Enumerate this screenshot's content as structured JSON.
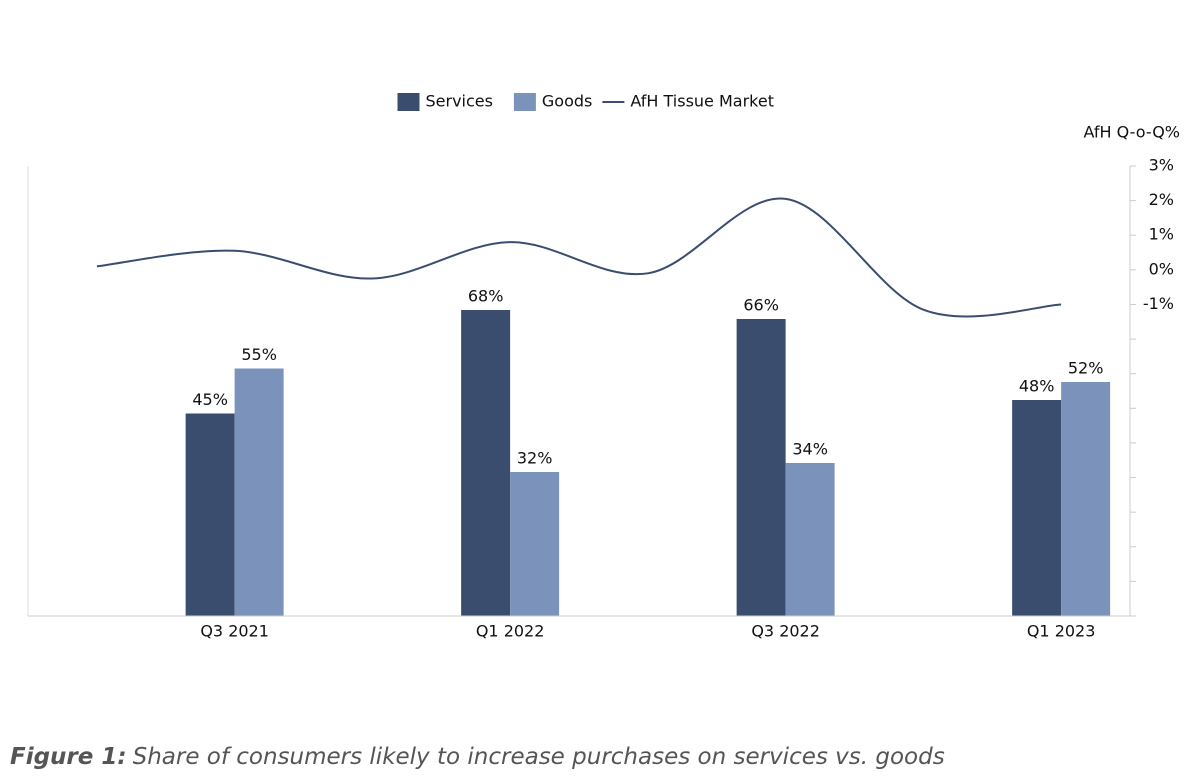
{
  "chart_data": {
    "type": "bar_line",
    "categories": [
      null,
      "Q3 2021",
      null,
      "Q1 2022",
      null,
      "Q3 2022",
      null,
      "Q1 2023"
    ],
    "series": [
      {
        "name": "Services",
        "color": "#3b4d6e",
        "type": "bar",
        "values": [
          null,
          45,
          null,
          68,
          null,
          66,
          null,
          48
        ],
        "value_labels": [
          null,
          "45%",
          null,
          "68%",
          null,
          "66%",
          null,
          "48%"
        ]
      },
      {
        "name": "Goods",
        "color": "#7b93ba",
        "type": "bar",
        "values": [
          null,
          55,
          null,
          32,
          null,
          34,
          null,
          52
        ],
        "value_labels": [
          null,
          "55%",
          null,
          "32%",
          null,
          "34%",
          null,
          "52%"
        ]
      },
      {
        "name": "AfH Tissue Market",
        "color": "#3b4d6e",
        "type": "line",
        "axis": "y2",
        "values": [
          0.1,
          0.55,
          -0.25,
          0.8,
          -0.1,
          2.05,
          -1.15,
          -1.0
        ]
      }
    ],
    "ylim": [
      0,
      100
    ],
    "y2lim": [
      -10,
      3
    ],
    "y2ticks": [
      {
        "value": 3,
        "label": "3%"
      },
      {
        "value": 2,
        "label": "2%"
      },
      {
        "value": 1,
        "label": "1%"
      },
      {
        "value": 0,
        "label": "0%"
      },
      {
        "value": -1,
        "label": "-1%"
      }
    ],
    "y2minor_ticks": [
      -2,
      -3,
      -4,
      -5,
      -6,
      -7,
      -8,
      -9,
      -10
    ],
    "y2label": "AfH Q-o-Q%",
    "legend": "top",
    "caption": {
      "label": "Figure 1:",
      "text": "Share of consumers likely to increase purchases on services vs. goods"
    }
  }
}
